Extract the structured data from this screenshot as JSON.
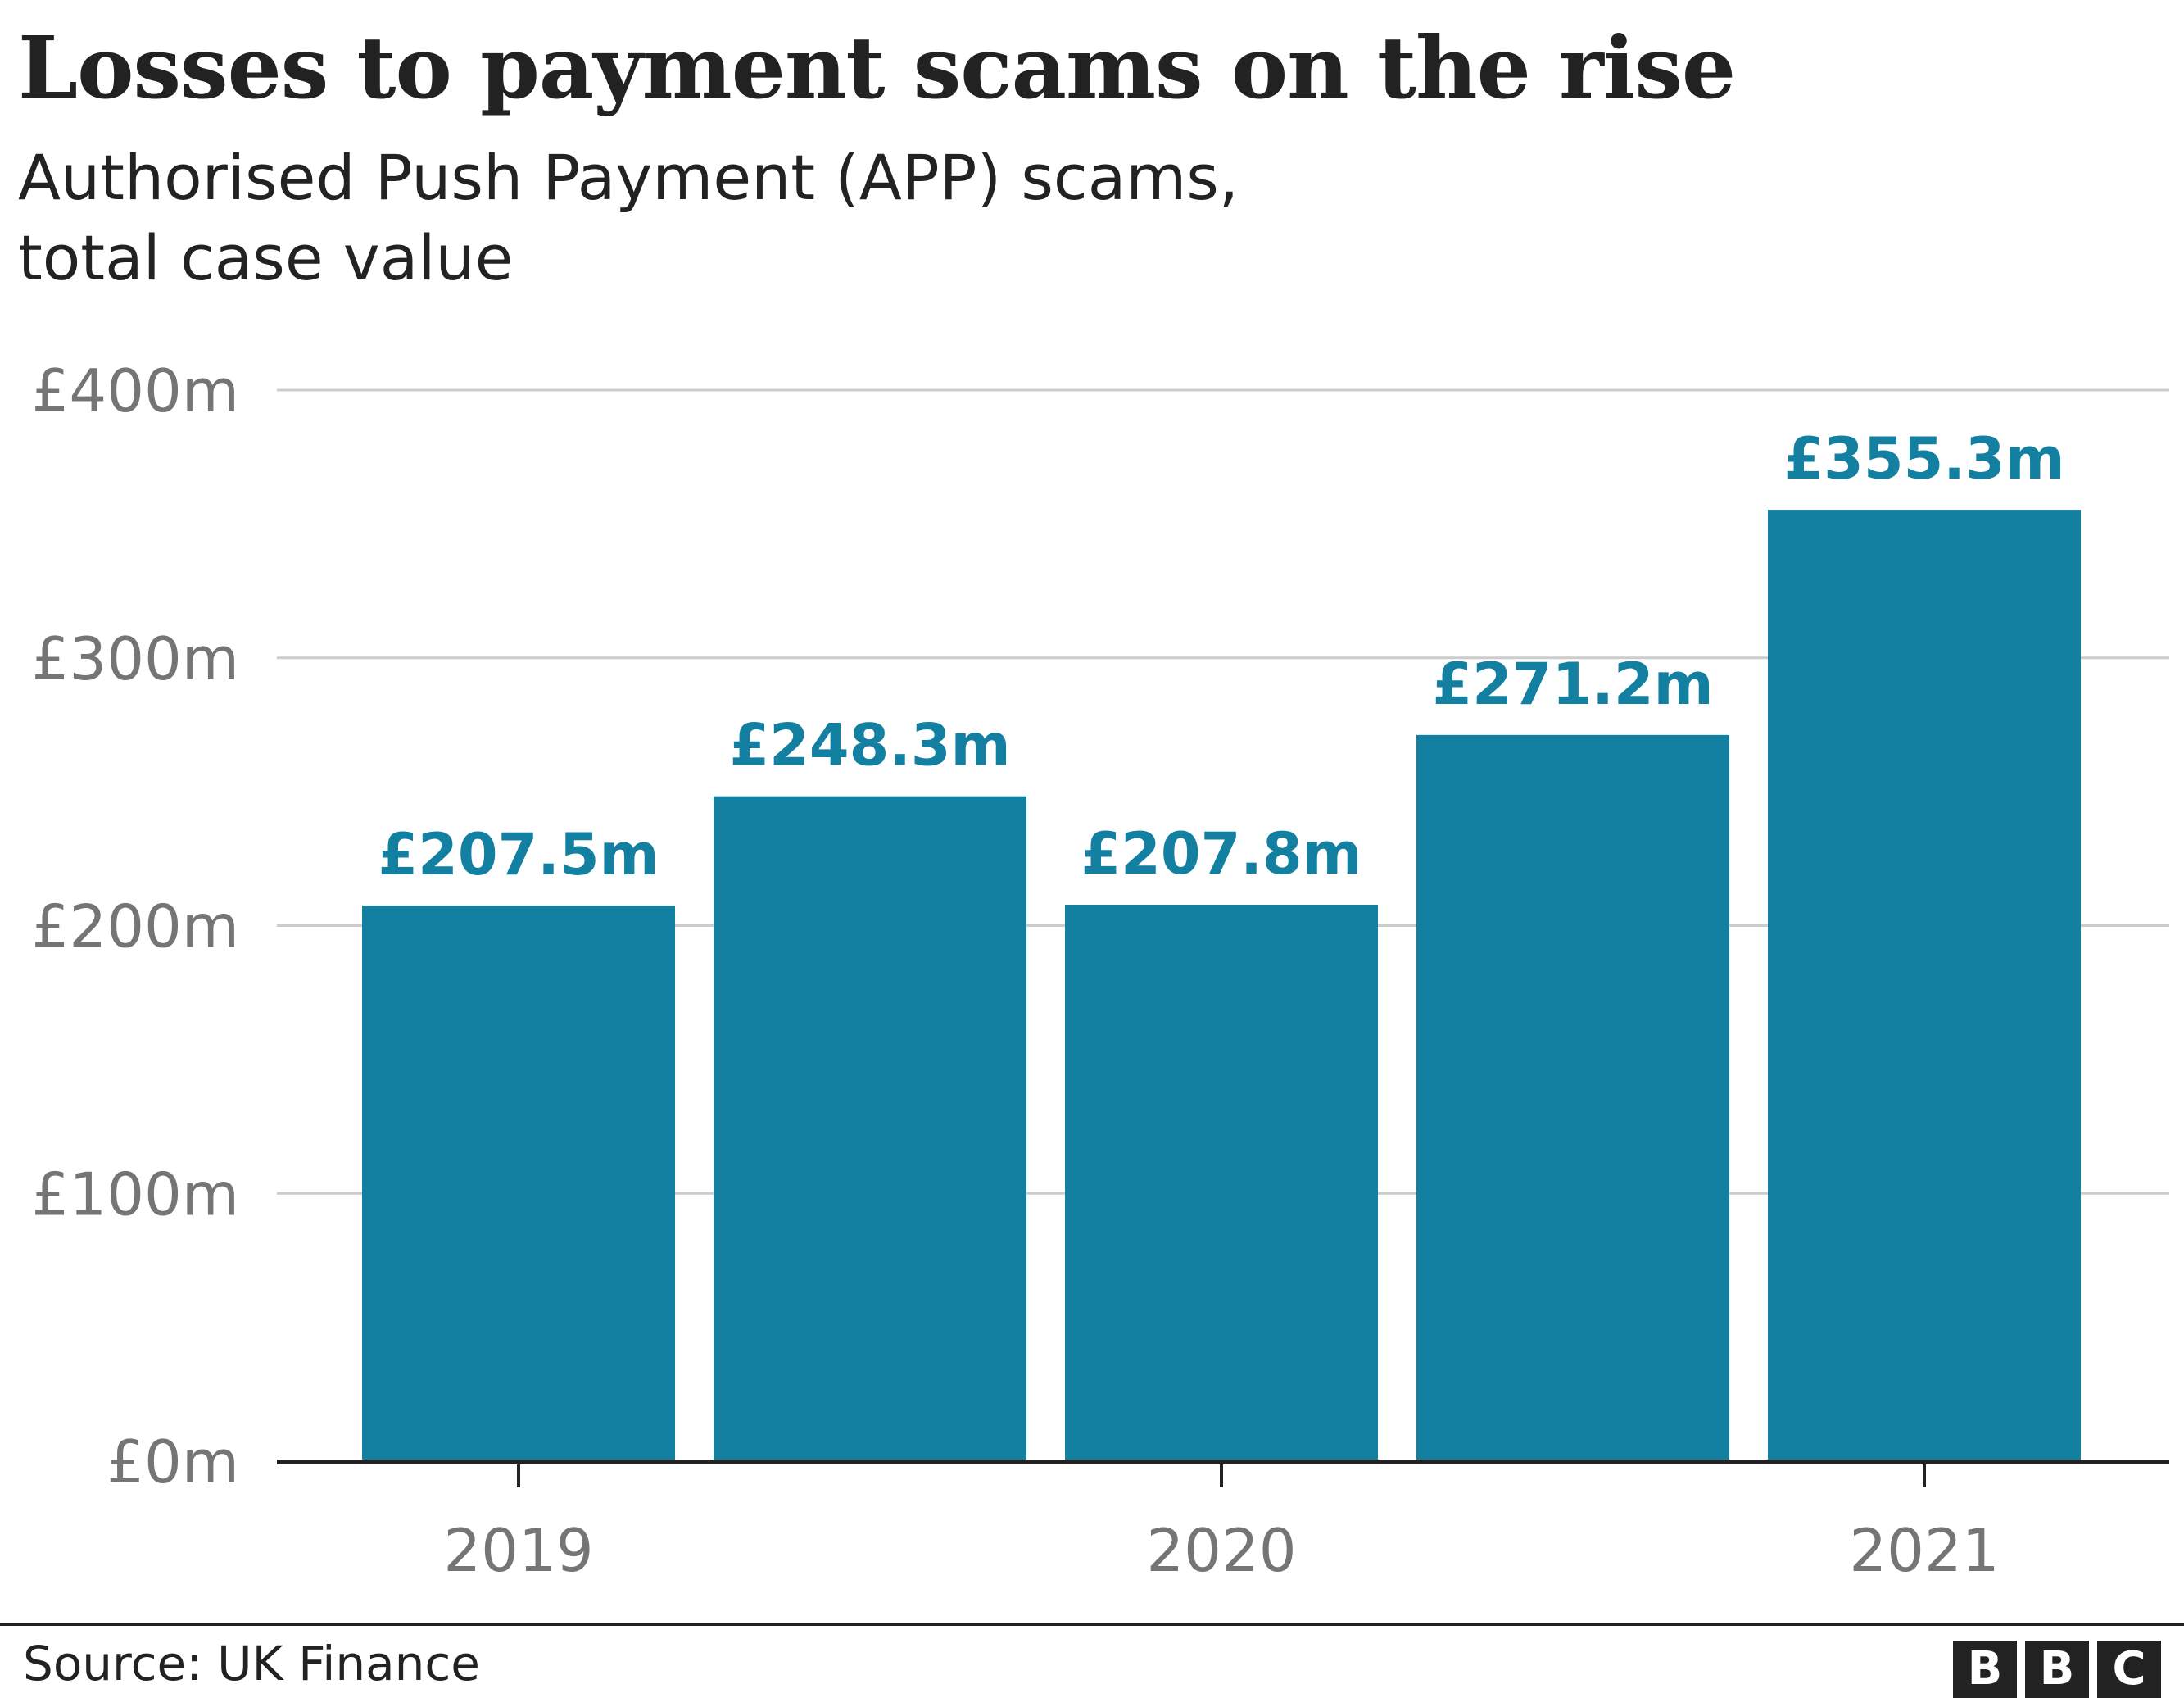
{
  "chart_data": {
    "type": "bar",
    "title": "Losses to payment scams on the rise",
    "subtitle": "Authorised Push Payment (APP) scams,\ntotal case value",
    "values": [
      207.5,
      248.3,
      207.8,
      271.2,
      355.3
    ],
    "value_labels": [
      "£207.5m",
      "£248.3m",
      "£207.8m",
      "£271.2m",
      "£355.3m"
    ],
    "x_tick_labels": [
      "2019",
      "2020",
      "2021"
    ],
    "x_tick_bar_index": [
      0,
      2,
      4
    ],
    "ylim": [
      0,
      400
    ],
    "y_ticks": [
      0,
      100,
      200,
      300,
      400
    ],
    "y_tick_labels": [
      "£0m",
      "£100m",
      "£200m",
      "£300m",
      "£400m"
    ],
    "xlabel": "",
    "ylabel": "",
    "grid": true,
    "legend": "none",
    "colors": {
      "bar": "#1380A1",
      "label": "#1380A1",
      "grid": "#cccccc",
      "axis": "#222222",
      "tick_text": "#757575"
    }
  },
  "footer": {
    "source": "Source: UK Finance",
    "logo_letters": [
      "B",
      "B",
      "C"
    ]
  }
}
